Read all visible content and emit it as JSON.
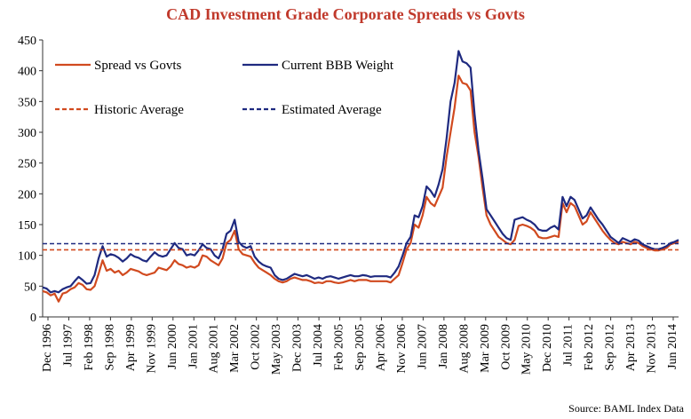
{
  "chart_data": {
    "type": "line",
    "title": "CAD Investment Grade Corporate Spreads vs Govts",
    "source": "Source: BAML Index Data",
    "ylim": [
      0,
      450
    ],
    "y_ticks": [
      "0",
      "50",
      "100",
      "150",
      "200",
      "250",
      "300",
      "350",
      "400",
      "450"
    ],
    "x_tick_labels": [
      "Dec 1996",
      "Jul 1997",
      "Feb 1998",
      "Sep 1998",
      "Apr 1999",
      "Nov 1999",
      "Jun 2000",
      "Jan 2001",
      "Aug 2001",
      "Mar 2002",
      "Oct 2002",
      "May 2003",
      "Dec 2003",
      "Jul 2004",
      "Feb 2005",
      "Sep 2005",
      "Apr 2006",
      "Nov 2006",
      "Jun 2007",
      "Jan 2008",
      "Aug 2008",
      "Mar 2009",
      "Oct 2009",
      "May 2010",
      "Dec 2010",
      "Jul 2011",
      "Feb 2012",
      "Sep 2012",
      "Apr 2013",
      "Nov 2013",
      "Jun 2014"
    ],
    "grid": false,
    "legend_placement": "top-left inside",
    "series": [
      {
        "name": "Spread vs Govts",
        "color": "#d14a1f",
        "style": "solid",
        "points": [
          [
            0,
            42
          ],
          [
            1,
            40
          ],
          [
            2,
            35
          ],
          [
            3,
            38
          ],
          [
            4,
            25
          ],
          [
            5,
            38
          ],
          [
            6,
            40
          ],
          [
            7,
            45
          ],
          [
            8,
            48
          ],
          [
            9,
            55
          ],
          [
            10,
            52
          ],
          [
            11,
            45
          ],
          [
            12,
            44
          ],
          [
            13,
            50
          ],
          [
            14,
            70
          ],
          [
            15,
            92
          ],
          [
            16,
            75
          ],
          [
            17,
            78
          ],
          [
            18,
            72
          ],
          [
            19,
            75
          ],
          [
            20,
            68
          ],
          [
            21,
            72
          ],
          [
            22,
            78
          ],
          [
            23,
            76
          ],
          [
            24,
            74
          ],
          [
            25,
            70
          ],
          [
            26,
            68
          ],
          [
            27,
            70
          ],
          [
            28,
            72
          ],
          [
            29,
            80
          ],
          [
            30,
            78
          ],
          [
            31,
            76
          ],
          [
            32,
            82
          ],
          [
            33,
            92
          ],
          [
            34,
            86
          ],
          [
            35,
            84
          ],
          [
            36,
            80
          ],
          [
            37,
            82
          ],
          [
            38,
            80
          ],
          [
            39,
            84
          ],
          [
            40,
            100
          ],
          [
            41,
            98
          ],
          [
            42,
            92
          ],
          [
            43,
            88
          ],
          [
            44,
            84
          ],
          [
            45,
            95
          ],
          [
            46,
            120
          ],
          [
            47,
            125
          ],
          [
            48,
            140
          ],
          [
            49,
            110
          ],
          [
            50,
            102
          ],
          [
            51,
            100
          ],
          [
            52,
            98
          ],
          [
            53,
            88
          ],
          [
            54,
            80
          ],
          [
            55,
            76
          ],
          [
            56,
            72
          ],
          [
            57,
            68
          ],
          [
            58,
            62
          ],
          [
            59,
            58
          ],
          [
            60,
            56
          ],
          [
            61,
            58
          ],
          [
            62,
            62
          ],
          [
            63,
            64
          ],
          [
            64,
            62
          ],
          [
            65,
            60
          ],
          [
            66,
            60
          ],
          [
            67,
            58
          ],
          [
            68,
            55
          ],
          [
            69,
            56
          ],
          [
            70,
            55
          ],
          [
            71,
            58
          ],
          [
            72,
            58
          ],
          [
            73,
            56
          ],
          [
            74,
            55
          ],
          [
            75,
            56
          ],
          [
            76,
            58
          ],
          [
            77,
            60
          ],
          [
            78,
            58
          ],
          [
            79,
            60
          ],
          [
            80,
            60
          ],
          [
            81,
            60
          ],
          [
            82,
            58
          ],
          [
            83,
            58
          ],
          [
            84,
            58
          ],
          [
            85,
            58
          ],
          [
            86,
            58
          ],
          [
            87,
            56
          ],
          [
            88,
            62
          ],
          [
            89,
            68
          ],
          [
            90,
            88
          ],
          [
            91,
            110
          ],
          [
            92,
            120
          ],
          [
            93,
            150
          ],
          [
            94,
            145
          ],
          [
            95,
            165
          ],
          [
            96,
            195
          ],
          [
            97,
            185
          ],
          [
            98,
            180
          ],
          [
            99,
            195
          ],
          [
            100,
            210
          ],
          [
            101,
            260
          ],
          [
            102,
            300
          ],
          [
            103,
            340
          ],
          [
            104,
            392
          ],
          [
            105,
            380
          ],
          [
            106,
            378
          ],
          [
            107,
            368
          ],
          [
            108,
            300
          ],
          [
            109,
            260
          ],
          [
            110,
            210
          ],
          [
            111,
            165
          ],
          [
            112,
            150
          ],
          [
            113,
            140
          ],
          [
            114,
            130
          ],
          [
            115,
            125
          ],
          [
            116,
            120
          ],
          [
            117,
            118
          ],
          [
            118,
            125
          ],
          [
            119,
            148
          ],
          [
            120,
            150
          ],
          [
            121,
            148
          ],
          [
            122,
            145
          ],
          [
            123,
            140
          ],
          [
            124,
            130
          ],
          [
            125,
            128
          ],
          [
            126,
            128
          ],
          [
            127,
            130
          ],
          [
            128,
            132
          ],
          [
            129,
            130
          ],
          [
            130,
            185
          ],
          [
            131,
            170
          ],
          [
            132,
            185
          ],
          [
            133,
            180
          ],
          [
            134,
            165
          ],
          [
            135,
            150
          ],
          [
            136,
            155
          ],
          [
            137,
            170
          ],
          [
            138,
            160
          ],
          [
            139,
            150
          ],
          [
            140,
            140
          ],
          [
            141,
            132
          ],
          [
            142,
            125
          ],
          [
            143,
            120
          ],
          [
            144,
            118
          ],
          [
            145,
            122
          ],
          [
            146,
            120
          ],
          [
            147,
            118
          ],
          [
            148,
            122
          ],
          [
            149,
            120
          ],
          [
            150,
            115
          ],
          [
            151,
            112
          ],
          [
            152,
            110
          ],
          [
            153,
            108
          ],
          [
            154,
            108
          ],
          [
            155,
            110
          ],
          [
            156,
            112
          ],
          [
            157,
            118
          ],
          [
            158,
            120
          ],
          [
            159,
            122
          ]
        ]
      },
      {
        "name": "Current BBB Weight",
        "color": "#1f2a80",
        "style": "solid",
        "points": [
          [
            0,
            48
          ],
          [
            1,
            46
          ],
          [
            2,
            40
          ],
          [
            3,
            42
          ],
          [
            4,
            40
          ],
          [
            5,
            45
          ],
          [
            6,
            48
          ],
          [
            7,
            50
          ],
          [
            8,
            58
          ],
          [
            9,
            65
          ],
          [
            10,
            60
          ],
          [
            11,
            54
          ],
          [
            12,
            55
          ],
          [
            13,
            68
          ],
          [
            14,
            95
          ],
          [
            15,
            115
          ],
          [
            16,
            98
          ],
          [
            17,
            102
          ],
          [
            18,
            100
          ],
          [
            19,
            96
          ],
          [
            20,
            90
          ],
          [
            21,
            95
          ],
          [
            22,
            102
          ],
          [
            23,
            98
          ],
          [
            24,
            96
          ],
          [
            25,
            92
          ],
          [
            26,
            90
          ],
          [
            27,
            98
          ],
          [
            28,
            105
          ],
          [
            29,
            100
          ],
          [
            30,
            98
          ],
          [
            31,
            100
          ],
          [
            32,
            110
          ],
          [
            33,
            120
          ],
          [
            34,
            112
          ],
          [
            35,
            110
          ],
          [
            36,
            100
          ],
          [
            37,
            102
          ],
          [
            38,
            100
          ],
          [
            39,
            108
          ],
          [
            40,
            118
          ],
          [
            41,
            112
          ],
          [
            42,
            110
          ],
          [
            43,
            100
          ],
          [
            44,
            95
          ],
          [
            45,
            110
          ],
          [
            46,
            135
          ],
          [
            47,
            140
          ],
          [
            48,
            158
          ],
          [
            49,
            122
          ],
          [
            50,
            115
          ],
          [
            51,
            112
          ],
          [
            52,
            115
          ],
          [
            53,
            98
          ],
          [
            54,
            90
          ],
          [
            55,
            85
          ],
          [
            56,
            82
          ],
          [
            57,
            80
          ],
          [
            58,
            68
          ],
          [
            59,
            62
          ],
          [
            60,
            60
          ],
          [
            61,
            62
          ],
          [
            62,
            66
          ],
          [
            63,
            70
          ],
          [
            64,
            68
          ],
          [
            65,
            66
          ],
          [
            66,
            68
          ],
          [
            67,
            65
          ],
          [
            68,
            62
          ],
          [
            69,
            64
          ],
          [
            70,
            62
          ],
          [
            71,
            65
          ],
          [
            72,
            66
          ],
          [
            73,
            64
          ],
          [
            74,
            62
          ],
          [
            75,
            64
          ],
          [
            76,
            66
          ],
          [
            77,
            68
          ],
          [
            78,
            66
          ],
          [
            79,
            66
          ],
          [
            80,
            68
          ],
          [
            81,
            67
          ],
          [
            82,
            65
          ],
          [
            83,
            66
          ],
          [
            84,
            66
          ],
          [
            85,
            66
          ],
          [
            86,
            66
          ],
          [
            87,
            64
          ],
          [
            88,
            72
          ],
          [
            89,
            82
          ],
          [
            90,
            100
          ],
          [
            91,
            120
          ],
          [
            92,
            130
          ],
          [
            93,
            165
          ],
          [
            94,
            162
          ],
          [
            95,
            180
          ],
          [
            96,
            212
          ],
          [
            97,
            205
          ],
          [
            98,
            195
          ],
          [
            99,
            215
          ],
          [
            100,
            240
          ],
          [
            101,
            290
          ],
          [
            102,
            350
          ],
          [
            103,
            380
          ],
          [
            104,
            432
          ],
          [
            105,
            415
          ],
          [
            106,
            412
          ],
          [
            107,
            405
          ],
          [
            108,
            330
          ],
          [
            109,
            270
          ],
          [
            110,
            225
          ],
          [
            111,
            175
          ],
          [
            112,
            165
          ],
          [
            113,
            155
          ],
          [
            114,
            145
          ],
          [
            115,
            135
          ],
          [
            116,
            128
          ],
          [
            117,
            125
          ],
          [
            118,
            158
          ],
          [
            119,
            160
          ],
          [
            120,
            162
          ],
          [
            121,
            158
          ],
          [
            122,
            155
          ],
          [
            123,
            150
          ],
          [
            124,
            142
          ],
          [
            125,
            140
          ],
          [
            126,
            140
          ],
          [
            127,
            145
          ],
          [
            128,
            148
          ],
          [
            129,
            142
          ],
          [
            130,
            195
          ],
          [
            131,
            180
          ],
          [
            132,
            195
          ],
          [
            133,
            190
          ],
          [
            134,
            175
          ],
          [
            135,
            160
          ],
          [
            136,
            165
          ],
          [
            137,
            178
          ],
          [
            138,
            168
          ],
          [
            139,
            158
          ],
          [
            140,
            150
          ],
          [
            141,
            140
          ],
          [
            142,
            130
          ],
          [
            143,
            125
          ],
          [
            144,
            120
          ],
          [
            145,
            128
          ],
          [
            146,
            125
          ],
          [
            147,
            122
          ],
          [
            148,
            126
          ],
          [
            149,
            124
          ],
          [
            150,
            118
          ],
          [
            151,
            115
          ],
          [
            152,
            112
          ],
          [
            153,
            110
          ],
          [
            154,
            110
          ],
          [
            155,
            112
          ],
          [
            156,
            115
          ],
          [
            157,
            120
          ],
          [
            158,
            122
          ],
          [
            159,
            125
          ]
        ]
      },
      {
        "name": "Historic Average",
        "color": "#d14a1f",
        "style": "dashed",
        "value": 109
      },
      {
        "name": "Estimated Average",
        "color": "#1f2a80",
        "style": "dashed",
        "value": 119
      }
    ]
  }
}
